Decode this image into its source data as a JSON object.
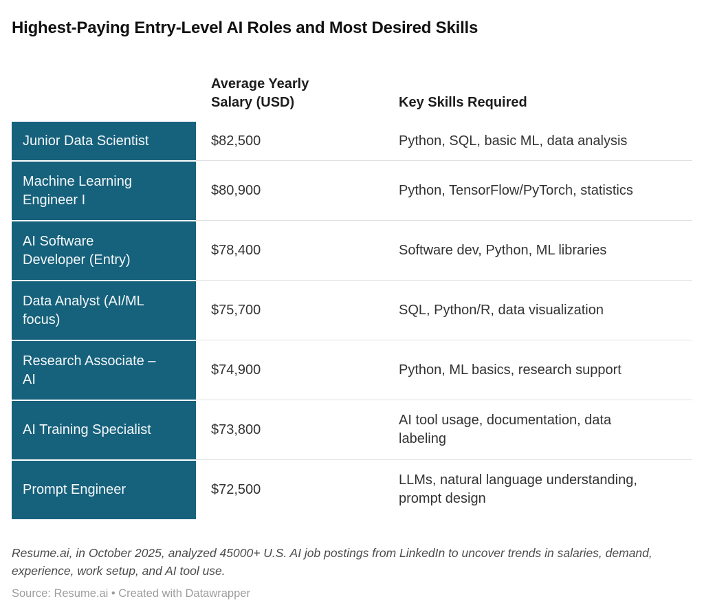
{
  "title": "Highest-Paying Entry-Level AI Roles and Most Desired Skills",
  "chart_data": {
    "type": "table",
    "title": "Highest-Paying Entry-Level AI Roles and Most Desired Skills",
    "columns": [
      "",
      "Average Yearly\nSalary (USD)",
      "Key Skills Required"
    ],
    "rows": [
      {
        "role": "Junior Data Scientist",
        "salary": "$82,500",
        "skills": "Python, SQL, basic ML, data analysis"
      },
      {
        "role": "Machine Learning\nEngineer I",
        "salary": "$80,900",
        "skills": "Python, TensorFlow/PyTorch, statistics"
      },
      {
        "role": "AI Software\nDeveloper (Entry)",
        "salary": "$78,400",
        "skills": "Software dev, Python, ML libraries"
      },
      {
        "role": "Data Analyst (AI/ML\nfocus)",
        "salary": "$75,700",
        "skills": "SQL, Python/R, data visualization"
      },
      {
        "role": "Research Associate –\nAI",
        "salary": "$74,900",
        "skills": "Python, ML basics, research support"
      },
      {
        "role": "AI Training Specialist",
        "salary": "$73,800",
        "skills": "AI tool usage, documentation, data\nlabeling"
      },
      {
        "role": "Prompt Engineer",
        "salary": "$72,500",
        "skills": "LLMs, natural language understanding,\nprompt design"
      }
    ],
    "salary_values_usd": [
      82500,
      80900,
      78400,
      75700,
      74900,
      73800,
      72500
    ],
    "notes": "Resume.ai, in October 2025, analyzed 45000+ U.S. AI job postings from LinkedIn to uncover trends in salaries, demand, experience, work setup, and AI tool use.",
    "source": "Source: Resume.ai • Created with Datawrapper",
    "legend_position": "none",
    "grid": "row-separators"
  },
  "colors": {
    "role_cell_bg": "#16617c",
    "role_cell_text": "#f4f8fa",
    "body_text": "#333333",
    "header_text": "#1c1c1c",
    "row_separator": "#e0e0e0",
    "notes_text": "#4c4c4c",
    "source_text": "#9d9d9d",
    "background": "#ffffff"
  }
}
